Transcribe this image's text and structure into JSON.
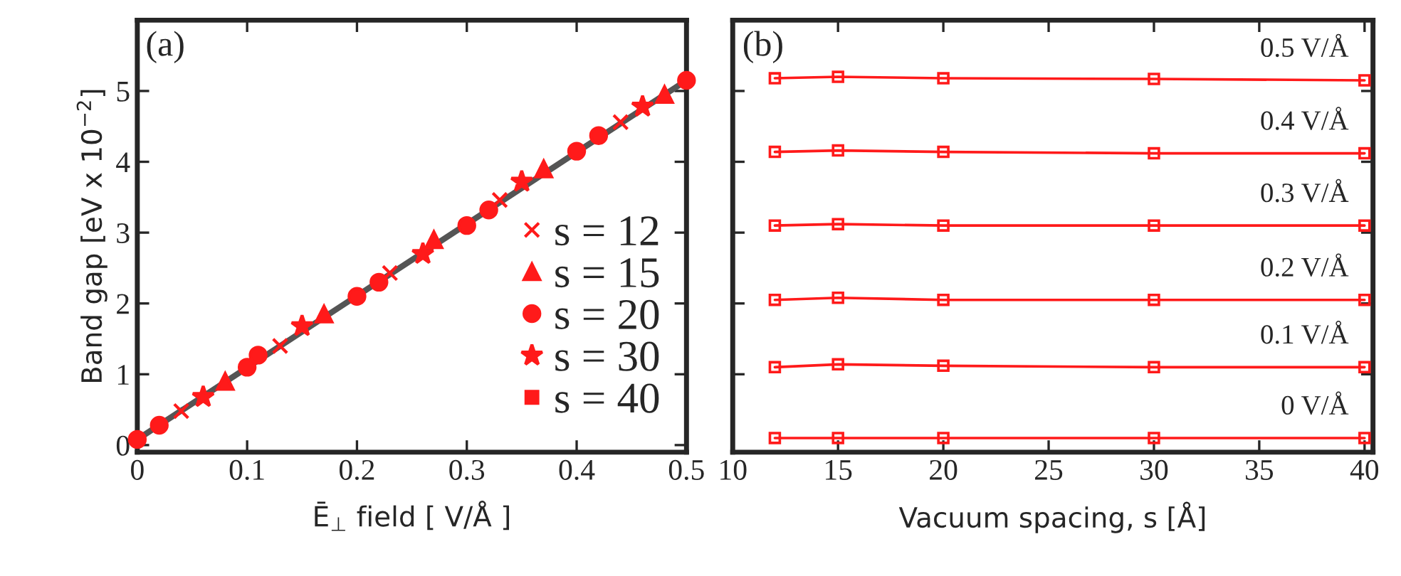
{
  "chart_data": [
    {
      "type": "scatter",
      "xlabel": "Ē$_{⊥}$ field [ V/Å ]",
      "ylabel": "Band gap [eV x 10$^{−2}$]",
      "annotations": [
        "(a)"
      ],
      "xlim": [
        0,
        0.5
      ],
      "ylim": [
        -0.1,
        6
      ],
      "xticks": [
        0,
        0.1,
        0.2,
        0.3,
        0.4,
        0.5
      ],
      "yticks": [
        0,
        1,
        2,
        3,
        4,
        5
      ],
      "grid": false,
      "legend": "right",
      "series": [
        {
          "type": "line",
          "color": "#555555",
          "marker": "none",
          "x": [
            0,
            0.5
          ],
          "values": [
            0.08,
            5.15
          ]
        },
        {
          "name": "s = 12",
          "color": "#ff1a1a",
          "marker": "cross",
          "x": [
            0.04,
            0.13,
            0.23,
            0.33,
            0.44
          ],
          "values": [
            0.48,
            1.4,
            2.43,
            3.46,
            4.56
          ]
        },
        {
          "name": "s = 15",
          "color": "#ff1a1a",
          "marker": "triangle",
          "x": [
            0.08,
            0.17,
            0.27,
            0.37,
            0.48
          ],
          "values": [
            0.9,
            1.85,
            2.9,
            3.9,
            4.95
          ]
        },
        {
          "name": "s = 20",
          "color": "#ff1a1a",
          "marker": "circle",
          "x": [
            0,
            0.02,
            0.1,
            0.11,
            0.2,
            0.22,
            0.3,
            0.32,
            0.4,
            0.42,
            0.5
          ],
          "values": [
            0.08,
            0.28,
            1.1,
            1.27,
            2.1,
            2.3,
            3.1,
            3.32,
            4.15,
            4.37,
            5.15
          ]
        },
        {
          "name": "s = 30",
          "color": "#ff1a1a",
          "marker": "star",
          "x": [
            0.06,
            0.15,
            0.26,
            0.35,
            0.46
          ],
          "values": [
            0.68,
            1.68,
            2.7,
            3.72,
            4.78
          ]
        },
        {
          "name": "s = 40",
          "color": "#ff1a1a",
          "marker": "square"
        }
      ]
    },
    {
      "type": "line",
      "xlabel": "Vacuum spacing, s [Å]",
      "annotations": [
        "(b)"
      ],
      "marker": "square",
      "tick_labels": "x",
      "xlim": [
        10,
        40.4
      ],
      "ylim": [
        -0.1,
        6
      ],
      "xticks": [
        10,
        15,
        20,
        25,
        30,
        35,
        40
      ],
      "yticks": [
        {
          "value": 1,
          "label": null
        },
        {
          "value": 2,
          "label": null
        },
        {
          "value": 3,
          "label": null
        },
        {
          "value": 4,
          "label": null
        },
        {
          "value": 5,
          "label": null
        }
      ],
      "grid": false,
      "x": [
        12,
        15,
        20,
        30,
        40
      ],
      "series": [
        {
          "name": "0 V/Å",
          "color": "#ff1a1a",
          "values": [
            0.1,
            0.1,
            0.1,
            0.1,
            0.1
          ]
        },
        {
          "name": "0.1 V/Å",
          "color": "#ff1a1a",
          "values": [
            1.1,
            1.14,
            1.12,
            1.1,
            1.1
          ]
        },
        {
          "name": "0.2 V/Å",
          "color": "#ff1a1a",
          "values": [
            2.05,
            2.08,
            2.05,
            2.05,
            2.05
          ]
        },
        {
          "name": "0.3 V/Å",
          "color": "#ff1a1a",
          "values": [
            3.1,
            3.12,
            3.1,
            3.1,
            3.1
          ]
        },
        {
          "name": "0.4 V/Å",
          "color": "#ff1a1a",
          "values": [
            4.14,
            4.16,
            4.14,
            4.12,
            4.12
          ]
        },
        {
          "name": "0.5 V/Å",
          "color": "#ff1a1a",
          "values": [
            5.18,
            5.2,
            5.18,
            5.17,
            5.15
          ]
        }
      ]
    }
  ]
}
